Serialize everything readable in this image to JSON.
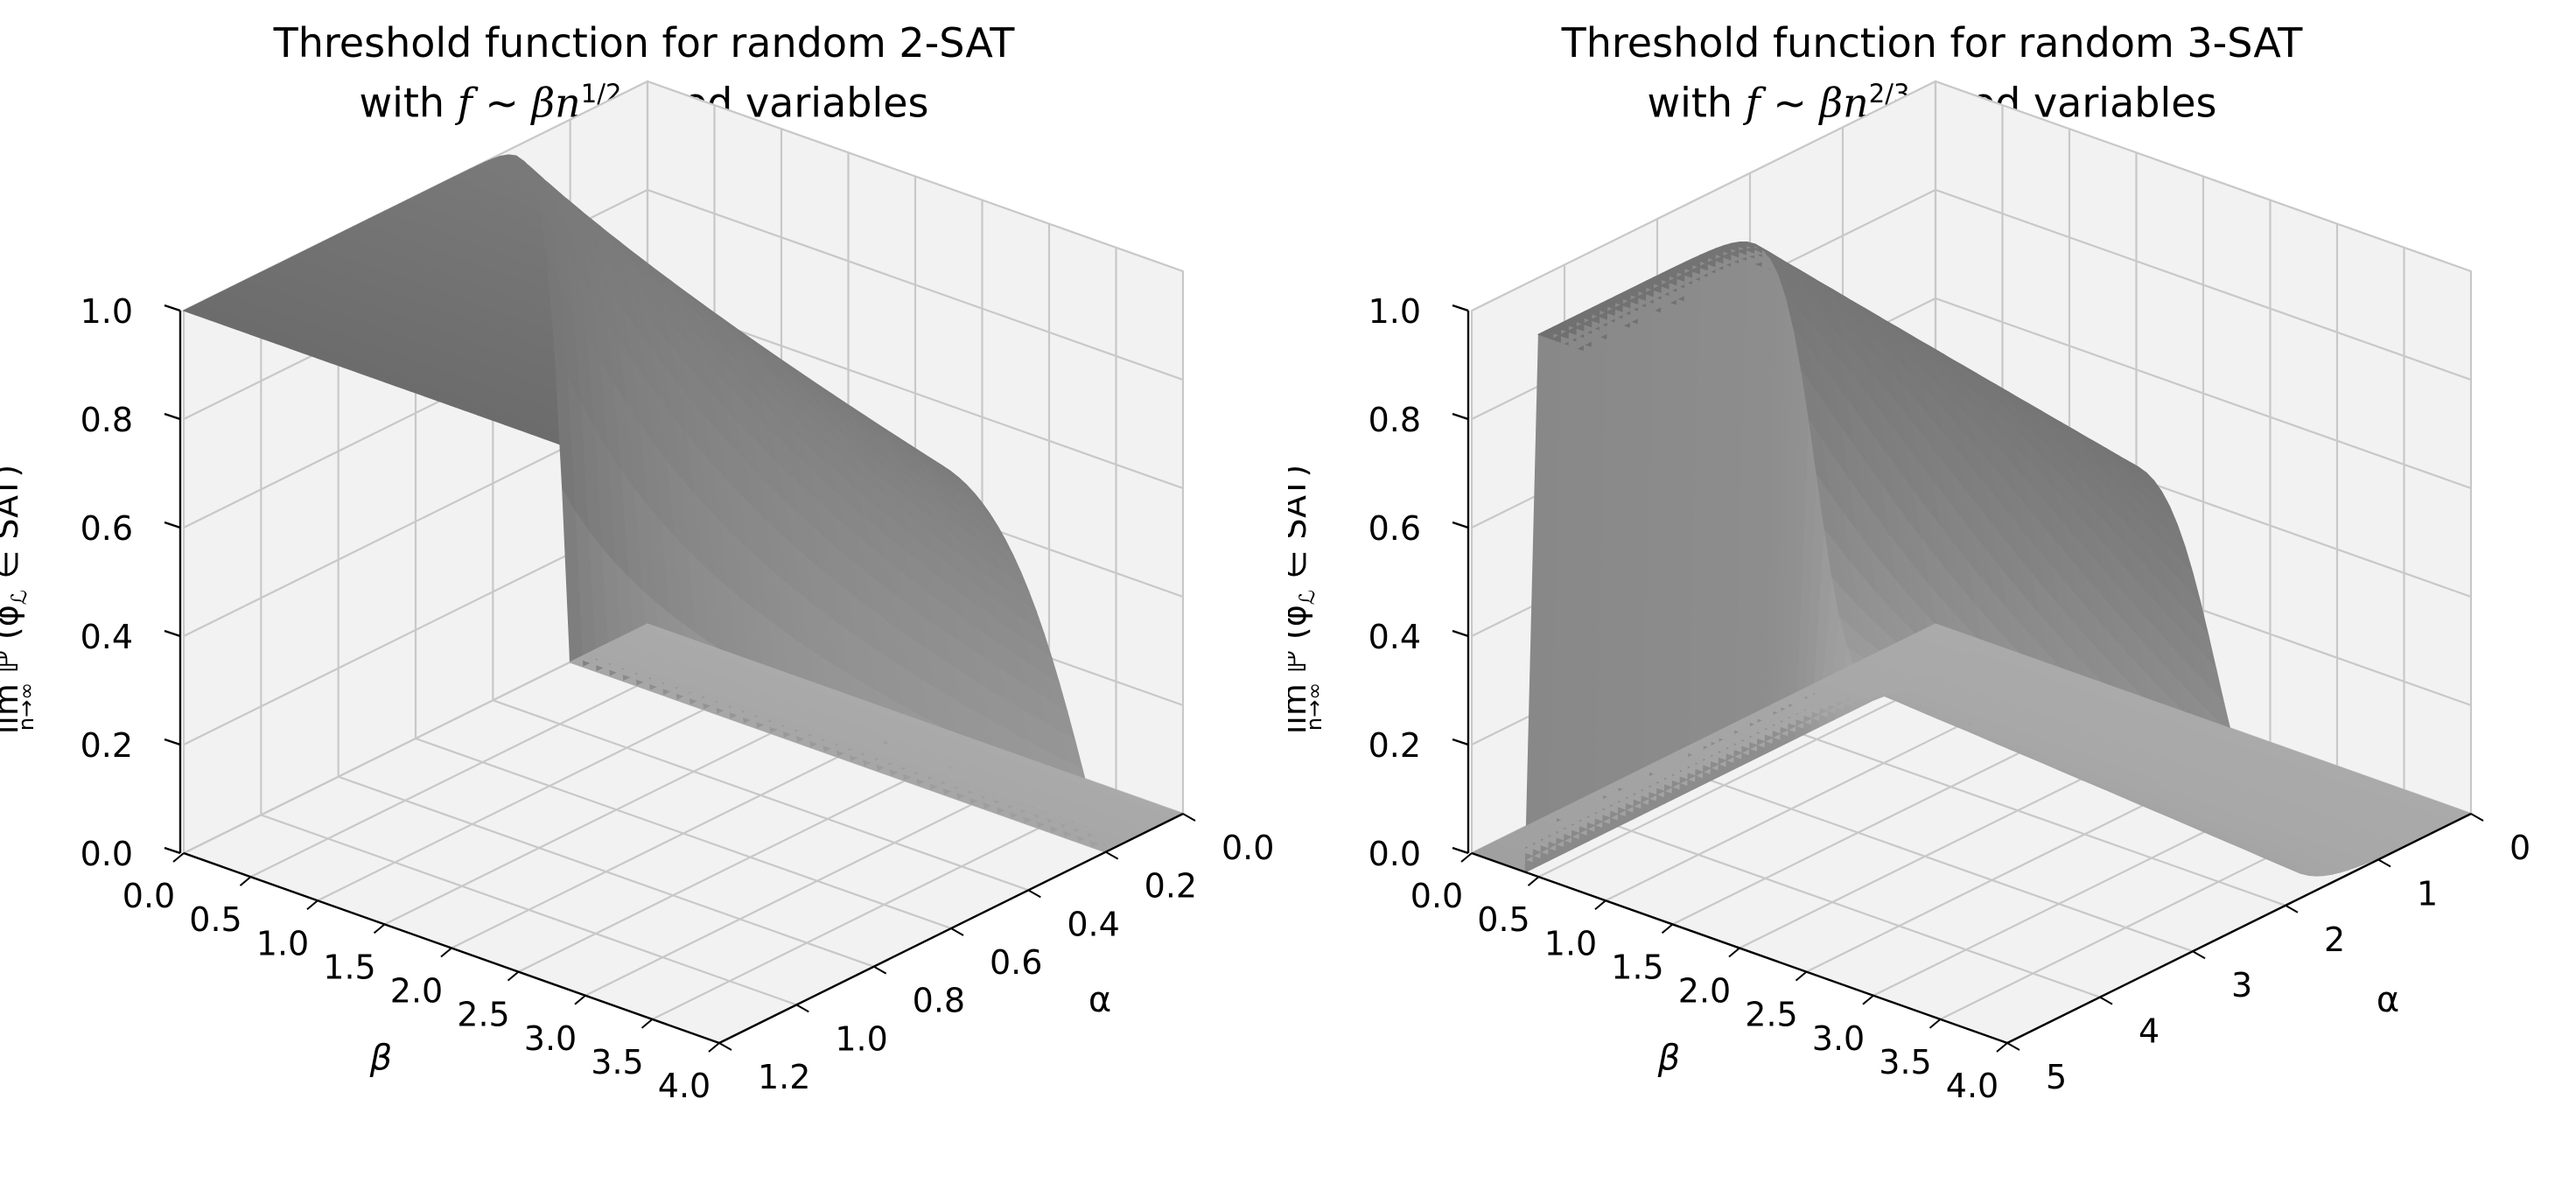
{
  "figure": {
    "panels": [
      {
        "title_line1": "Threshold function for random 2-SAT",
        "title_line2_prefix": "with ",
        "title_f": "f",
        "title_sim": " ~ ",
        "title_beta_n": "βn",
        "title_exp": "1/2",
        "title_line2_suffix": " fixed variables"
      },
      {
        "title_line1": "Threshold function for random 3-SAT",
        "title_line2_prefix": "with ",
        "title_f": "f",
        "title_sim": " ~ ",
        "title_beta_n": "βn",
        "title_exp": "2/3",
        "title_line2_suffix": " fixed variables"
      }
    ]
  },
  "chart_data": [
    {
      "type": "surface",
      "title": "Threshold function for random 2-SAT with f ~ βn^{1/2} fixed variables",
      "xlabel": "β",
      "ylabel": "α",
      "zlabel": "lim ℙ (φ_ℒ ∈ SAT)",
      "zlabel_main": "lim",
      "zlabel_sub": "n→∞",
      "zlabel_rest": "ℙ (φ",
      "zlabel_rest_sub": "ℒ",
      "zlabel_end": " ∈ SAT)",
      "xlim": [
        0,
        4
      ],
      "ylim": [
        0,
        1.2
      ],
      "zlim": [
        0,
        1
      ],
      "xticks": [
        "0.0",
        "0.5",
        "1.0",
        "1.5",
        "2.0",
        "2.5",
        "3.0",
        "3.5",
        "4.0"
      ],
      "yticks": [
        "0.0",
        "0.2",
        "0.4",
        "0.6",
        "0.8",
        "1.0",
        "1.2"
      ],
      "zticks": [
        "0.0",
        "0.2",
        "0.4",
        "0.6",
        "0.8",
        "1.0"
      ],
      "grid": true,
      "threshold_alpha": 1.0,
      "x_samples": [
        0,
        0.25,
        0.5,
        0.75,
        1.0,
        1.5,
        2.0,
        2.5,
        3.0,
        3.5,
        4.0
      ],
      "surface_note_values": {
        "z_at_alpha_0": 1.0,
        "z_at_alpha_1": 0.0
      },
      "color": "#707070"
    },
    {
      "type": "surface",
      "title": "Threshold function for random 3-SAT with f ~ βn^{2/3} fixed variables",
      "xlabel": "β",
      "ylabel": "α",
      "zlabel": "lim ℙ (φ_ℒ ∈ SAT)",
      "zlabel_main": "lim",
      "zlabel_sub": "n→∞",
      "zlabel_rest": "ℙ (φ",
      "zlabel_rest_sub": "ℒ",
      "zlabel_end": " ∈ SAT)",
      "xlim": [
        0,
        4
      ],
      "ylim": [
        0,
        5
      ],
      "zlim": [
        0,
        1
      ],
      "xticks": [
        "0.0",
        "0.5",
        "1.0",
        "1.5",
        "2.0",
        "2.5",
        "3.0",
        "3.5",
        "4.0"
      ],
      "yticks": [
        "0",
        "1",
        "2",
        "3",
        "4",
        "5"
      ],
      "zticks": [
        "0.0",
        "0.2",
        "0.4",
        "0.6",
        "0.8",
        "1.0"
      ],
      "grid": true,
      "threshold_alpha": 3.0,
      "surface_note_values": {
        "z_at_alpha_0": 1.0,
        "z_at_alpha_5": 0.0
      },
      "color": "#808080"
    }
  ]
}
